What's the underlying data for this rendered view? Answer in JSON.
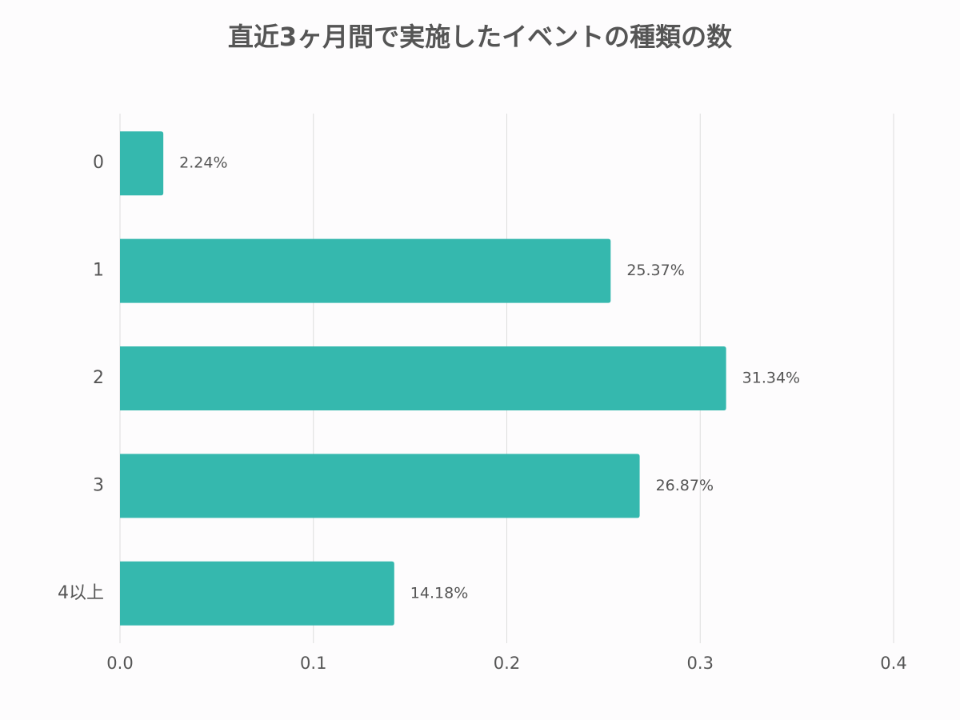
{
  "chart_data": {
    "type": "bar",
    "title": "直近3ヶ月間で実施したイベントの種類の数",
    "categories": [
      "0",
      "1",
      "2",
      "3",
      "4以上"
    ],
    "values": [
      0.0224,
      0.2537,
      0.3134,
      0.2687,
      0.1418
    ],
    "value_labels": [
      "2.24%",
      "25.37%",
      "31.34%",
      "26.87%",
      "14.18%"
    ],
    "color": "#35b8ae",
    "xlim": [
      0,
      0.4
    ],
    "xticks": [
      {
        "value": 0,
        "label": "0.0"
      },
      0.1,
      0.2,
      0.3,
      0.4
    ],
    "grid": true
  }
}
